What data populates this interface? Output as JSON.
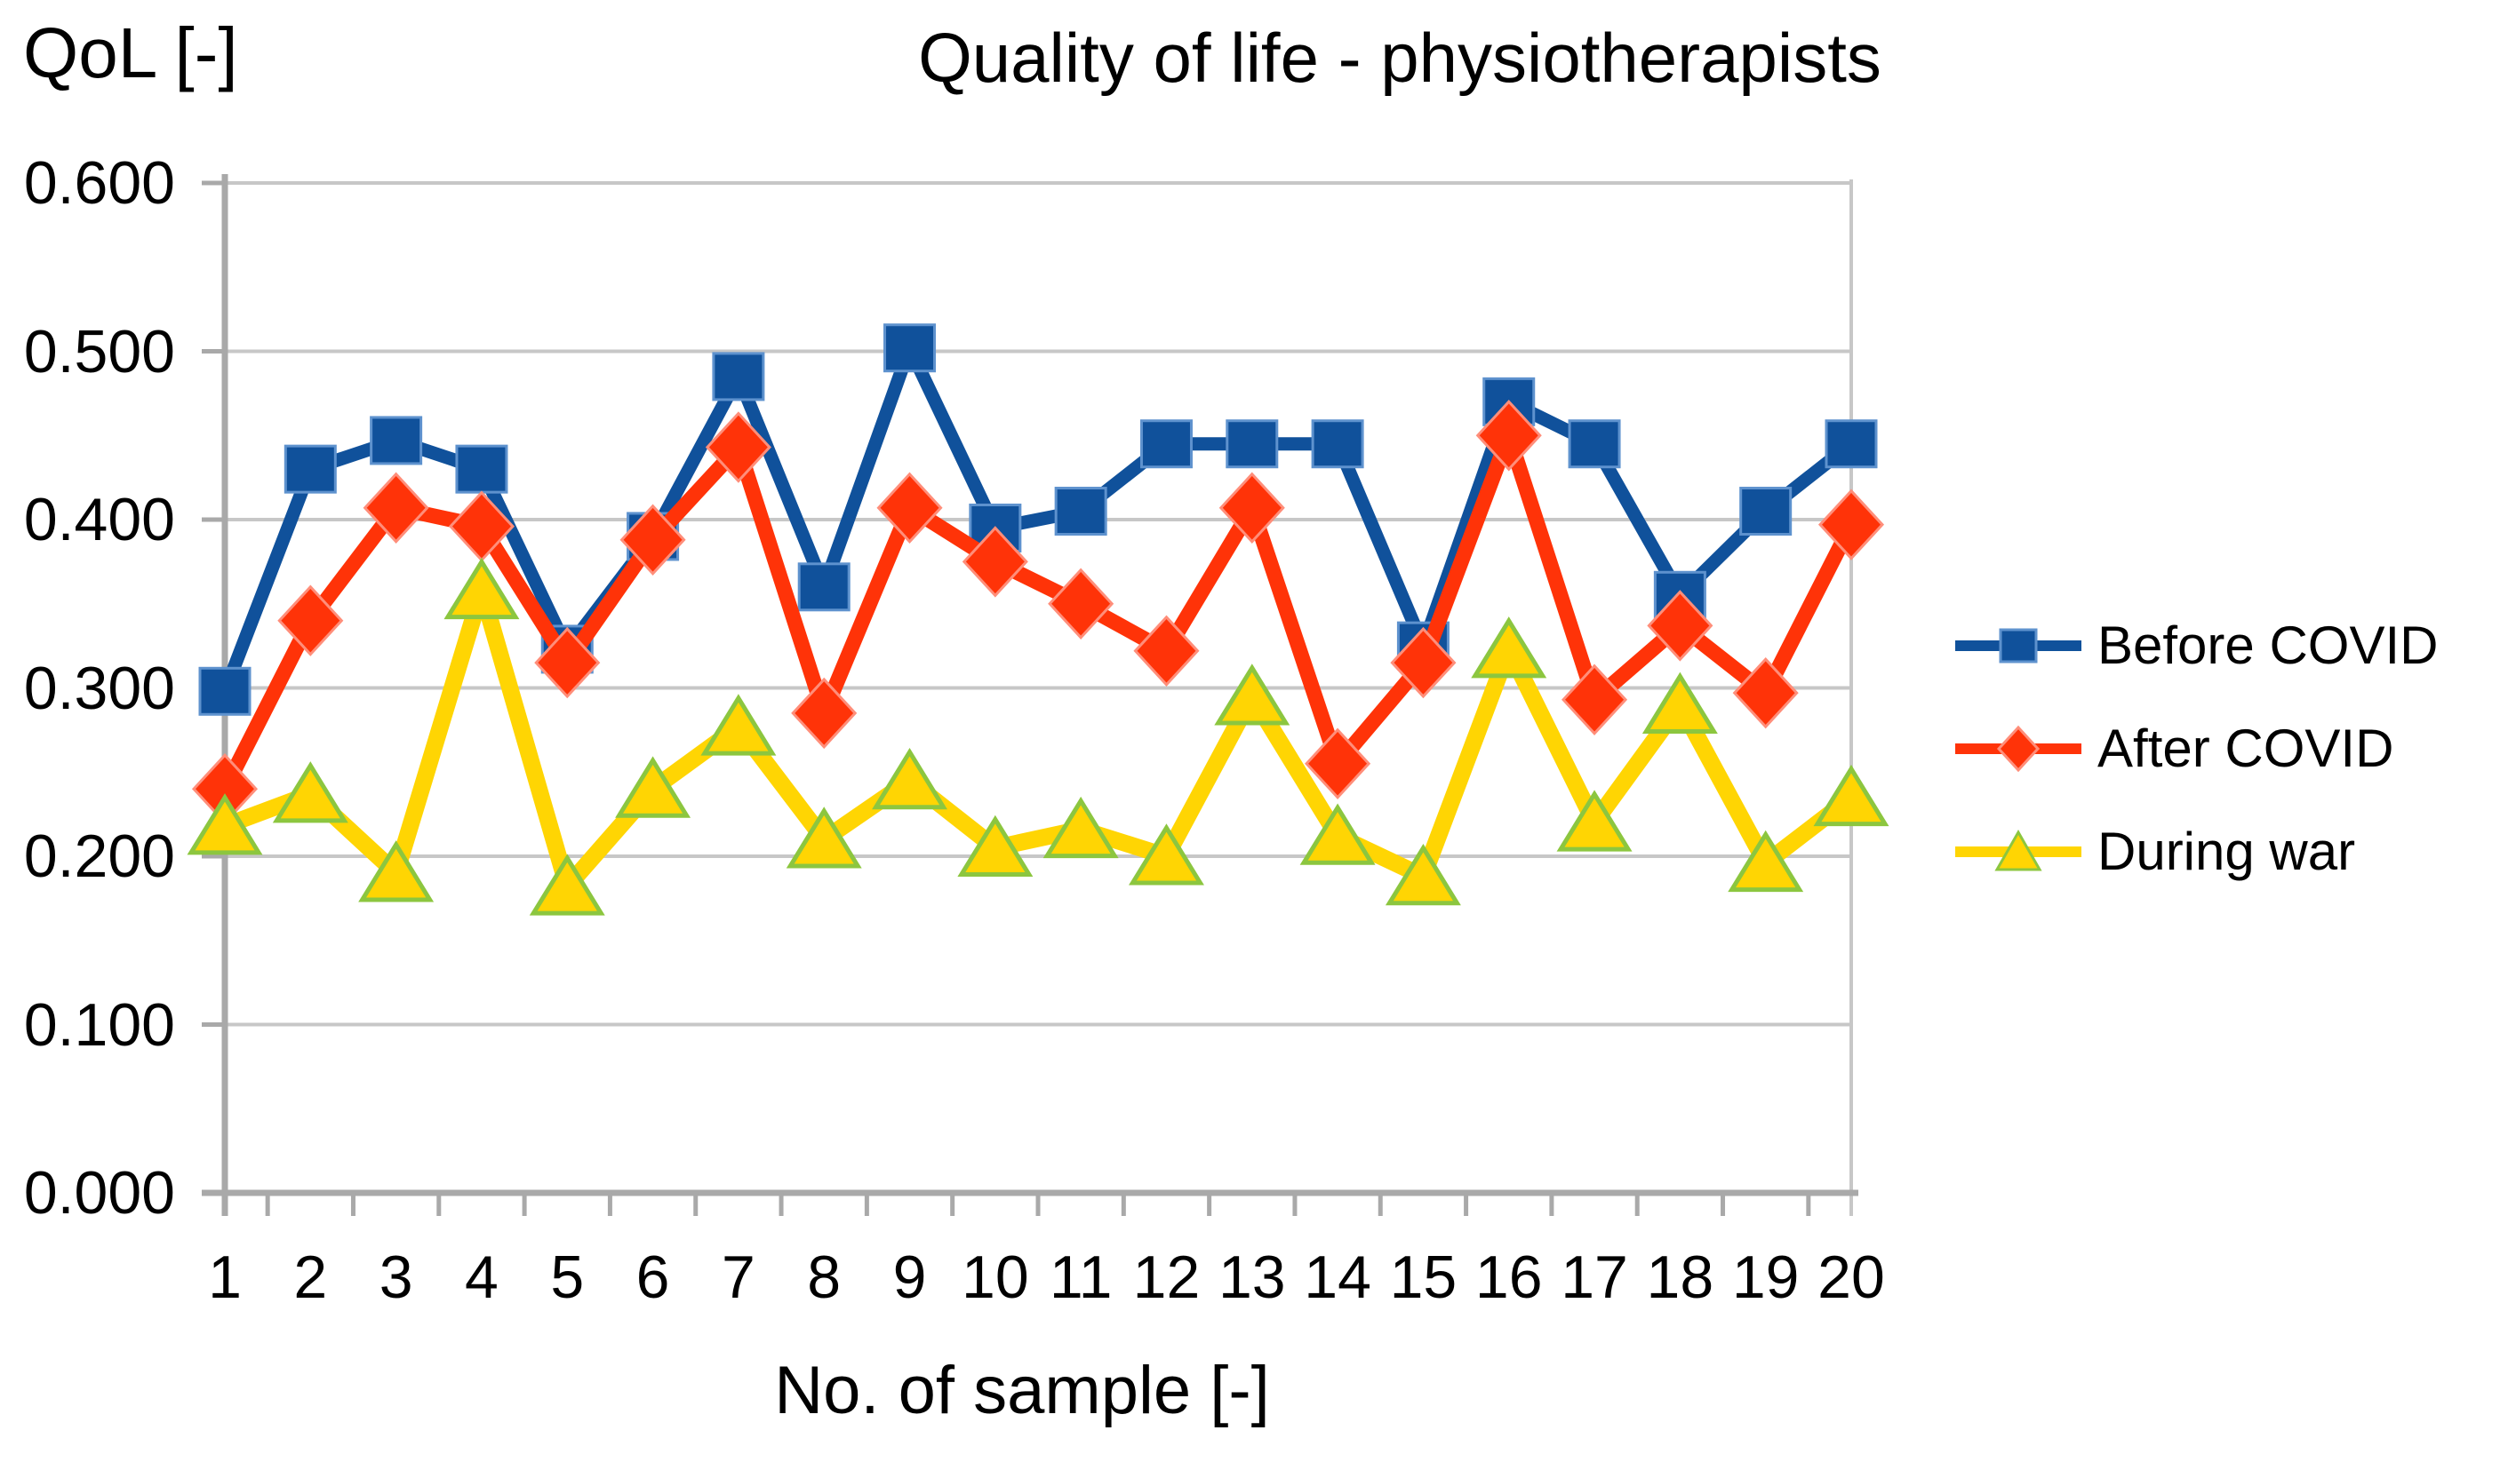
{
  "chart_data": {
    "type": "line",
    "title": "Quality of life - physiotherapists",
    "ylabel": "QoL [-]",
    "xlabel": "No. of sample [-]",
    "categories": [
      "1",
      "2",
      "3",
      "4",
      "5",
      "6",
      "7",
      "8",
      "9",
      "10",
      "11",
      "12",
      "13",
      "14",
      "15",
      "16",
      "17",
      "18",
      "19",
      "20"
    ],
    "ylim": [
      0,
      0.6
    ],
    "y_tick_step": 0.1,
    "y_ticklabels": [
      "0.000",
      "0.100",
      "0.200",
      "0.300",
      "0.400",
      "0.500",
      "0.600"
    ],
    "grid": true,
    "legend_position": "right",
    "series": [
      {
        "name": "Before COVID",
        "marker": "square",
        "color": "#10519B",
        "marker_stroke": "#5E92CE",
        "values": [
          0.298,
          0.43,
          0.447,
          0.43,
          0.323,
          0.39,
          0.485,
          0.36,
          0.502,
          0.395,
          0.405,
          0.445,
          0.445,
          0.445,
          0.325,
          0.47,
          0.445,
          0.355,
          0.405,
          0.445
        ]
      },
      {
        "name": "After COVID",
        "marker": "diamond",
        "color": "#FF3308",
        "marker_stroke": "#FF8E7A",
        "values": [
          0.24,
          0.34,
          0.407,
          0.396,
          0.315,
          0.388,
          0.443,
          0.285,
          0.407,
          0.375,
          0.35,
          0.322,
          0.407,
          0.255,
          0.315,
          0.45,
          0.293,
          0.337,
          0.297,
          0.397
        ]
      },
      {
        "name": "During war",
        "marker": "triangle",
        "color": "#FFD503",
        "marker_stroke": "#8CC63F",
        "values": [
          0.218,
          0.237,
          0.19,
          0.358,
          0.182,
          0.24,
          0.277,
          0.21,
          0.245,
          0.205,
          0.216,
          0.2,
          0.295,
          0.212,
          0.188,
          0.323,
          0.22,
          0.29,
          0.196,
          0.235
        ]
      }
    ],
    "colors": {
      "grid": "#C7C7C7",
      "axis": "#A9A9A9",
      "plot_border": "#C7C7C7",
      "text": "#000000",
      "background": "#FFFFFF"
    }
  }
}
